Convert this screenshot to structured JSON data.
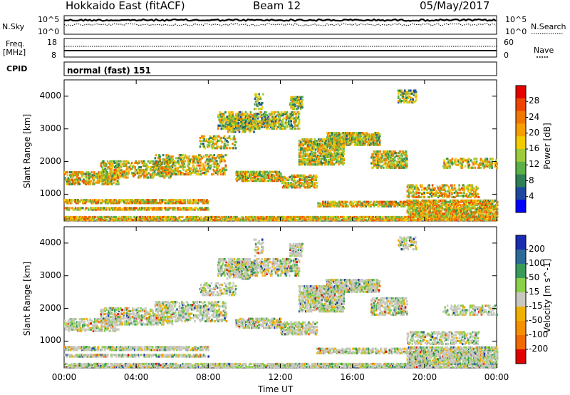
{
  "header": {
    "title": "Hokkaido East (fitACF)",
    "beam": "Beam 12",
    "date": "05/May/2017"
  },
  "aux": {
    "nsky_label": "N.Sky",
    "nsearch_label": "N.Search",
    "nsky_ticks": [
      "10^5",
      "10^0"
    ],
    "nsearch_ticks": [
      "10^5",
      "10^0"
    ],
    "freq_label_1": "Freq.",
    "freq_label_2": "[MHz]",
    "freq_ticks": [
      "18",
      "8"
    ],
    "nave_label": "Nave",
    "nave_ticks": [
      "60",
      "0"
    ],
    "cpid_label": "CPID",
    "cpid_value": "normal (fast) 151"
  },
  "chart_data": [
    {
      "type": "heatmap",
      "name": "power",
      "ylabel": "Slant Range [km]",
      "xlabel": "Time UT",
      "xlim": [
        0,
        24
      ],
      "ylim": [
        180,
        4500
      ],
      "x_ticks": [
        "00:00",
        "04:00",
        "08:00",
        "12:00",
        "16:00",
        "20:00",
        "00:00"
      ],
      "y_ticks": [
        1000,
        2000,
        3000,
        4000
      ],
      "colorbar": {
        "label": "Power [dB]",
        "ticks": [
          4,
          8,
          12,
          16,
          20,
          24,
          28
        ],
        "colors": [
          "#0000ff",
          "#1e48a0",
          "#2e7f58",
          "#5bb048",
          "#9ccc3c",
          "#f2cc00",
          "#f5a000",
          "#f07800",
          "#ee4400",
          "#e40000"
        ]
      }
    },
    {
      "type": "heatmap",
      "name": "velocity",
      "ylabel": "Slant Range [km]",
      "xlabel": "Time UT",
      "xlim": [
        0,
        24
      ],
      "ylim": [
        180,
        4500
      ],
      "x_ticks": [
        "00:00",
        "04:00",
        "08:00",
        "12:00",
        "16:00",
        "20:00",
        "00:00"
      ],
      "y_ticks": [
        1000,
        2000,
        3000,
        4000
      ],
      "colorbar": {
        "label": "Velocity [m s^-1]",
        "ticks": [
          200,
          100,
          50,
          15,
          -15,
          -50,
          -100,
          -200
        ],
        "colors": [
          "#1a2cb0",
          "#2c6a9a",
          "#3a9a5a",
          "#8ad048",
          "#c8c8c0",
          "#f0b000",
          "#f59000",
          "#f06a00",
          "#e00000"
        ]
      }
    }
  ]
}
